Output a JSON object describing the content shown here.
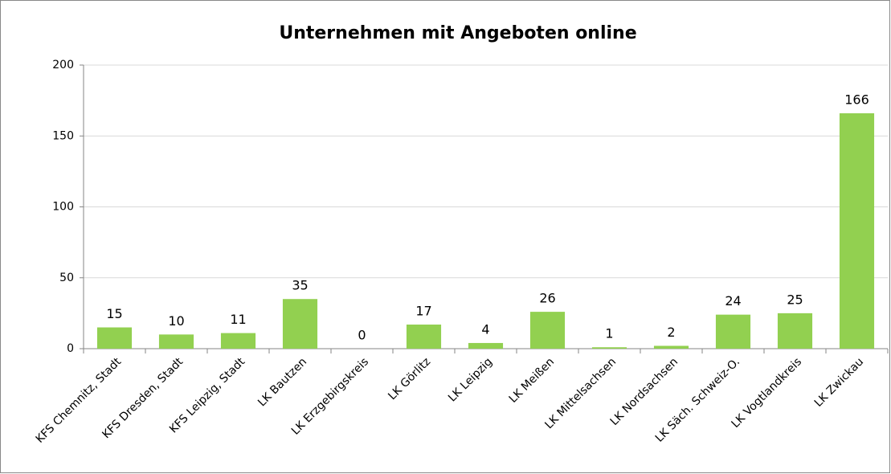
{
  "chart_data": {
    "type": "bar",
    "title": "Unternehmen mit Angeboten online",
    "categories": [
      "KFS Chemnitz, Stadt",
      "KFS Dresden, Stadt",
      "KFS Leipzig, Stadt",
      "LK Bautzen",
      "LK Erzgebirgskreis",
      "LK Görlitz",
      "LK Leipzig",
      "LK Meißen",
      "LK Mittelsachsen",
      "LK Nordsachsen",
      "LK Säch. Schweiz-O.",
      "LK Vogtlandkreis",
      "LK Zwickau"
    ],
    "values": [
      15,
      10,
      11,
      35,
      0,
      17,
      4,
      26,
      1,
      2,
      24,
      25,
      166
    ],
    "color": "#92d050",
    "ylim": [
      0,
      200
    ],
    "yticks": [
      0,
      50,
      100,
      150,
      200
    ],
    "grid": true
  }
}
